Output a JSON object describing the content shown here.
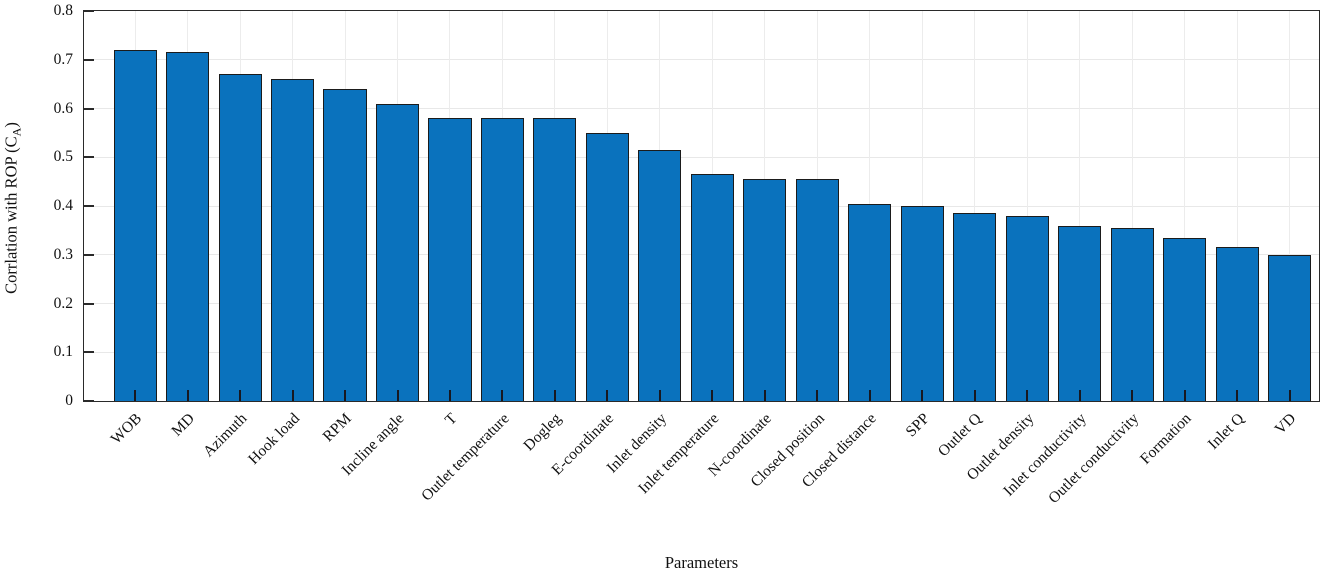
{
  "figure": {
    "background": "#ffffff",
    "bar_fill": "#0a72bd",
    "bar_edge": "#1b1b1b",
    "grid_color": "#e8e8e8",
    "axis_color": "#2a2a2a",
    "text_color": "#111111"
  },
  "chart_data": {
    "type": "bar",
    "title": "",
    "xlabel": "Parameters",
    "ylabel_prefix": "Corrlation with ROP (C",
    "ylabel_sub": "A",
    "ylabel_suffix": ")",
    "ylim": [
      0,
      0.8
    ],
    "ytick_labels": [
      "0",
      "0.1",
      "0.2",
      "0.3",
      "0.4",
      "0.5",
      "0.6",
      "0.7",
      "0.8"
    ],
    "grid": true,
    "legend_position": "none",
    "categories": [
      "WOB",
      "MD",
      "Azimuth",
      "Hook load",
      "RPM",
      "Incline angle",
      "T",
      "Outlet temperature",
      "Dogleg",
      "E-coordinate",
      "Inlet density",
      "Inlet temperature",
      "N-coordinate",
      "Closed position",
      "Closed distance",
      "SPP",
      "Outlet Q",
      "Outlet density",
      "Inlet conductivity",
      "Outlet conductivity",
      "Formation",
      "Inlet Q",
      "VD"
    ],
    "values": [
      0.72,
      0.715,
      0.67,
      0.66,
      0.64,
      0.61,
      0.58,
      0.58,
      0.58,
      0.55,
      0.515,
      0.465,
      0.455,
      0.455,
      0.405,
      0.4,
      0.385,
      0.38,
      0.36,
      0.355,
      0.335,
      0.315,
      0.3
    ]
  }
}
